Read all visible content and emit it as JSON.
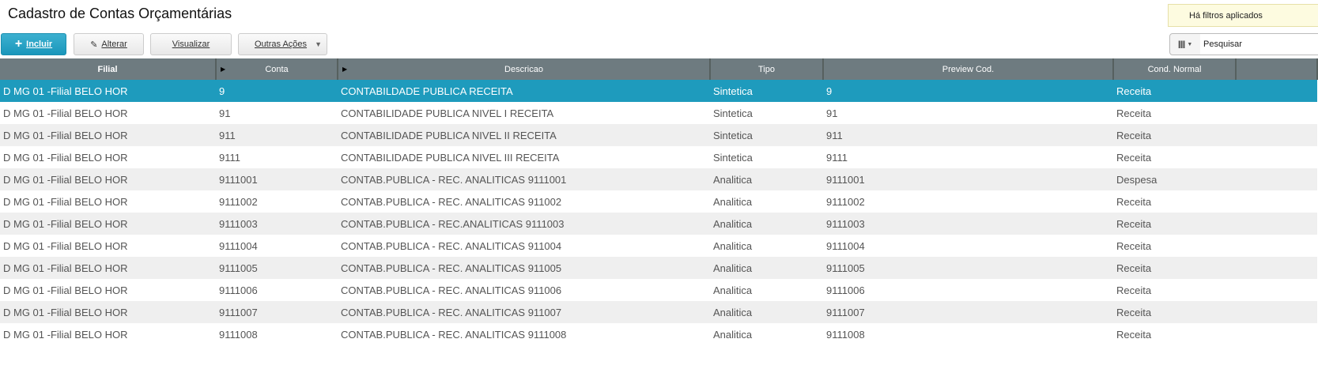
{
  "page": {
    "title": "Cadastro de Contas Orçamentárias",
    "filters_notice": "Há filtros aplicados"
  },
  "toolbar": {
    "incluir": "Incluir",
    "alterar": "Alterar",
    "visualizar": "Visualizar",
    "outras": "Outras Ações",
    "search_placeholder": "Pesquisar"
  },
  "table": {
    "columns": [
      "Filial",
      "Conta",
      "Descricao",
      "Tipo",
      "Preview Cod.",
      "Cond. Normal"
    ],
    "rows": [
      [
        "D MG 01 -Filial BELO HOR",
        "9",
        "CONTABILDADE PUBLICA RECEITA",
        "Sintetica",
        "9",
        "Receita"
      ],
      [
        "D MG 01 -Filial BELO HOR",
        "91",
        "CONTABILIDADE PUBLICA NIVEL I RECEITA",
        "Sintetica",
        "91",
        "Receita"
      ],
      [
        "D MG 01 -Filial BELO HOR",
        "911",
        "CONTABILIDADE PUBLICA NIVEL II RECEITA",
        "Sintetica",
        "911",
        "Receita"
      ],
      [
        "D MG 01 -Filial BELO HOR",
        "9111",
        "CONTABILIDADE PUBLICA NIVEL III RECEITA",
        "Sintetica",
        "9111",
        "Receita"
      ],
      [
        "D MG 01 -Filial BELO HOR",
        "9111001",
        "CONTAB.PUBLICA - REC. ANALITICAS 9111001",
        "Analitica",
        "9111001",
        "Despesa"
      ],
      [
        "D MG 01 -Filial BELO HOR",
        "9111002",
        "CONTAB.PUBLICA - REC. ANALITICAS 911002",
        "Analitica",
        "9111002",
        "Receita"
      ],
      [
        "D MG 01 -Filial BELO HOR",
        "9111003",
        "CONTAB.PUBLICA - REC.ANALITICAS 9111003",
        "Analitica",
        "9111003",
        "Receita"
      ],
      [
        "D MG 01 -Filial BELO HOR",
        "9111004",
        "CONTAB.PUBLICA - REC. ANALITICAS 911004",
        "Analitica",
        "9111004",
        "Receita"
      ],
      [
        "D MG 01 -Filial BELO HOR",
        "9111005",
        "CONTAB.PUBLICA - REC. ANALITICAS 911005",
        "Analitica",
        "9111005",
        "Receita"
      ],
      [
        "D MG 01 -Filial BELO HOR",
        "9111006",
        "CONTAB.PUBLICA - REC. ANALITICAS 911006",
        "Analitica",
        "9111006",
        "Receita"
      ],
      [
        "D MG 01 -Filial BELO HOR",
        "9111007",
        "CONTAB.PUBLICA - REC. ANALITICAS 911007",
        "Analitica",
        "9111007",
        "Receita"
      ],
      [
        "D MG 01 -Filial BELO HOR",
        "9111008",
        "CONTAB.PUBLICA - REC. ANALITICAS 9111008",
        "Analitica",
        "9111008",
        "Receita"
      ]
    ]
  }
}
